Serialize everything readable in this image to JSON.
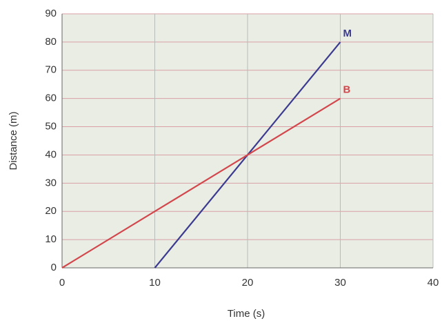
{
  "chart_data": {
    "type": "line",
    "x_label": "Time (s)",
    "y_label": "Distance (m)",
    "x": [
      0,
      10,
      20,
      30
    ],
    "series": [
      {
        "name": "M",
        "color": "#3b3a8f",
        "values": [
          null,
          0,
          40,
          80
        ]
      },
      {
        "name": "B",
        "color": "#d2474c",
        "values": [
          0,
          20,
          40,
          60
        ]
      }
    ],
    "xlim": [
      0,
      40
    ],
    "xticks": [
      0,
      10,
      20,
      30,
      40
    ],
    "ylim": [
      0,
      90
    ],
    "yticks": [
      0,
      10,
      20,
      30,
      40,
      50,
      60,
      70,
      80,
      90
    ],
    "grid": true
  }
}
